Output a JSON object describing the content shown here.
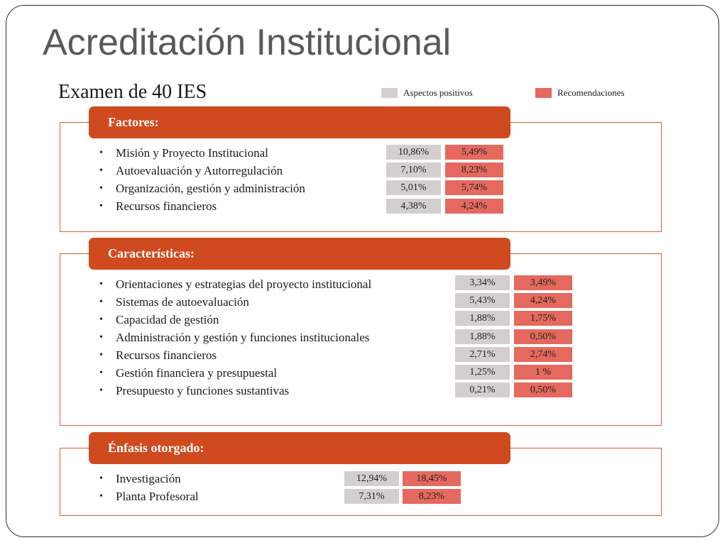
{
  "title": "Acreditación Institucional",
  "subtitle": "Examen de 40 IES",
  "colors": {
    "positive": "#d3cfcf",
    "recommendation": "#e5695e",
    "section_header": "#cf4a1e",
    "section_border": "#d0613a",
    "title_text": "#595959"
  },
  "legend": {
    "positive": "Aspectos positivos",
    "recommendations": "Recomendaciones"
  },
  "sections": [
    {
      "heading": "Factores:",
      "items": [
        {
          "label": "Misión y Proyecto Institucional",
          "positive": "10,86%",
          "recommendation": "5,49%"
        },
        {
          "label": "Autoevaluación y Autorregulación",
          "positive": "7,10%",
          "recommendation": "8,23%"
        },
        {
          "label": "Organización, gestión y administración",
          "positive": "5,01%",
          "recommendation": "5,74%"
        },
        {
          "label": "Recursos financieros",
          "positive": "4,38%",
          "recommendation": "4,24%"
        }
      ]
    },
    {
      "heading": "Características:",
      "items": [
        {
          "label": "Orientaciones y estrategias del proyecto institucional",
          "positive": "3,34%",
          "recommendation": "3,49%"
        },
        {
          "label": "Sistemas de autoevaluación",
          "positive": "5,43%",
          "recommendation": "4,24%"
        },
        {
          "label": "Capacidad de gestión",
          "positive": "1,88%",
          "recommendation": "1,75%"
        },
        {
          "label": "Administración y gestión y funciones institucionales",
          "positive": "1,88%",
          "recommendation": "0,50%"
        },
        {
          "label": "Recursos financieros",
          "positive": "2,71%",
          "recommendation": "2,74%"
        },
        {
          "label": "Gestión financiera y presupuestal",
          "positive": "1,25%",
          "recommendation": "1 %"
        },
        {
          "label": "Presupuesto y funciones sustantivas",
          "positive": "0,21%",
          "recommendation": "0,50%"
        }
      ]
    },
    {
      "heading": "Énfasis otorgado:",
      "items": [
        {
          "label": "Investigación",
          "positive": "12,94%",
          "recommendation": "18,45%"
        },
        {
          "label": "Planta Profesoral",
          "positive": "7,31%",
          "recommendation": "8,23%"
        }
      ]
    }
  ]
}
